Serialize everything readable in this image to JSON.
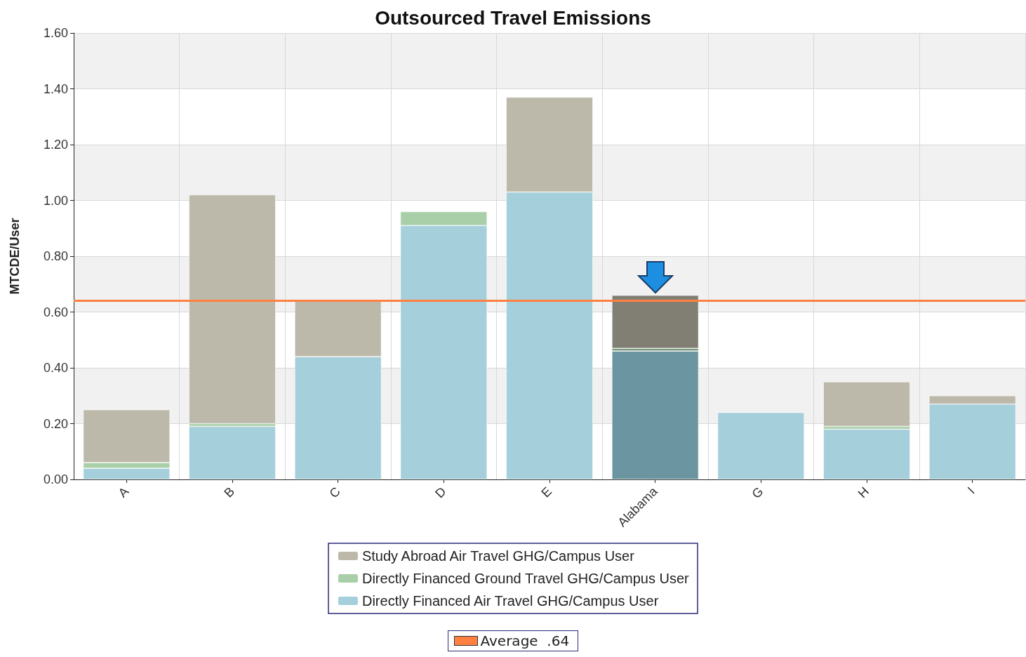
{
  "chart_data": {
    "type": "bar",
    "title": "Outsourced Travel Emissions",
    "ylabel": "MTCDE/User",
    "categories": [
      "A",
      "B",
      "C",
      "D",
      "E",
      "Alabama",
      "G",
      "H",
      "I"
    ],
    "stacked": true,
    "series": [
      {
        "name": "Directly Financed Air Travel GHG/Campus User",
        "color": "#a6cfdc",
        "colors": [
          "#a6cfdc",
          "#a6cfdc",
          "#a6cfdc",
          "#a6cfdc",
          "#a6cfdc",
          "#6b95a0",
          "#a6cfdc",
          "#a6cfdc",
          "#a6cfdc"
        ],
        "values": [
          0.04,
          0.19,
          0.44,
          0.91,
          1.03,
          0.46,
          0.24,
          0.18,
          0.27
        ]
      },
      {
        "name": "Directly Financed Ground Travel GHG/Campus User",
        "color": "#a8cfa8",
        "colors": [
          "#a8cfa8",
          "#a8cfa8",
          "#a8cfa8",
          "#a8cfa8",
          "#a8cfa8",
          "#7a9a80",
          "#a8cfa8",
          "#a8cfa8",
          "#a8cfa8"
        ],
        "values": [
          0.02,
          0.01,
          0,
          0.05,
          0,
          0.01,
          0,
          0.01,
          0
        ]
      },
      {
        "name": "Study Abroad Air Travel GHG/Campus User",
        "color": "#bcb9aa",
        "colors": [
          "#bcb9aa",
          "#bcb9aa",
          "#bcb9aa",
          "#bcb9aa",
          "#bcb9aa",
          "#817f74",
          "#bcb9aa",
          "#bcb9aa",
          "#bcb9aa"
        ],
        "values": [
          0.19,
          0.82,
          0.2,
          0,
          0.34,
          0.19,
          0,
          0.16,
          0.03
        ]
      }
    ],
    "ylim": [
      0,
      1.6
    ],
    "yticks": [
      {
        "value": 0,
        "label": "0.00"
      },
      {
        "value": 0.2,
        "label": "0.20"
      },
      {
        "value": 0.4,
        "label": "0.40"
      },
      {
        "value": 0.6,
        "label": "0.60"
      },
      {
        "value": 0.8,
        "label": "0.80"
      },
      {
        "value": 1,
        "label": "1.00"
      },
      {
        "value": 1.2,
        "label": "1.20"
      },
      {
        "value": 1.4,
        "label": "1.40"
      },
      {
        "value": 1.6,
        "label": "1.60"
      }
    ],
    "ref_lines": [
      {
        "axis": "y",
        "value": 0.64,
        "label": "Average  .64",
        "color": "#ff8040"
      }
    ],
    "grid": true,
    "legend": "bottom"
  }
}
